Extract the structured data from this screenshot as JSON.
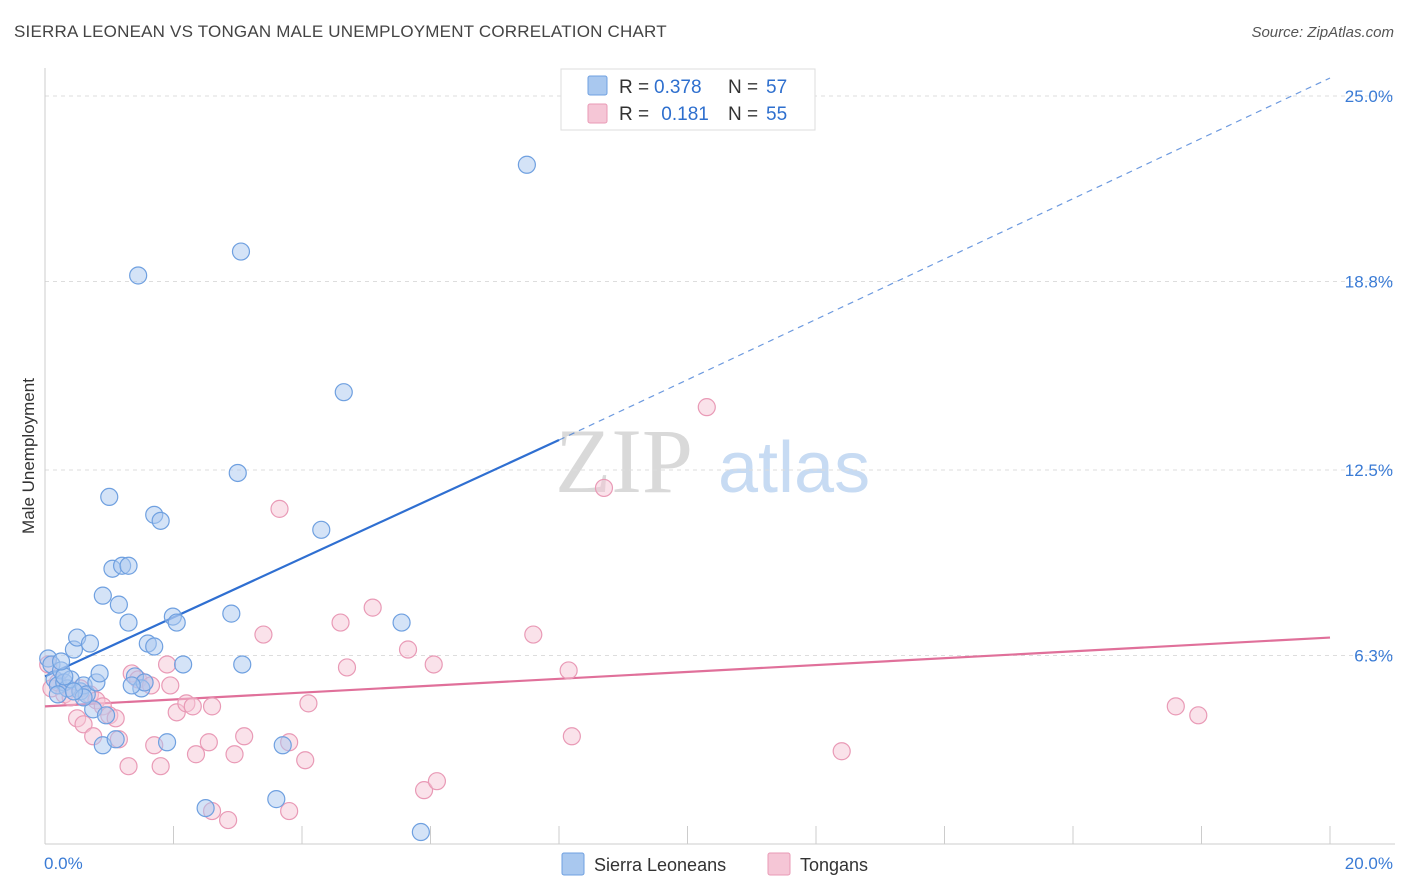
{
  "title": "SIERRA LEONEAN VS TONGAN MALE UNEMPLOYMENT CORRELATION CHART",
  "source": "Source: ZipAtlas.com",
  "watermark": {
    "zip": "ZIP",
    "atlas": "atlas"
  },
  "colors": {
    "blue": "#6fa0e0",
    "blue_fill": "#a9c8ef",
    "blue_line": "#2f6fd1",
    "pink": "#e99ab6",
    "pink_fill": "#f5c6d6",
    "pink_line": "#e0709a",
    "tick": "#3a7bd5"
  },
  "legend": {
    "rows": [
      {
        "r_label": "R =",
        "r_value": "0.378",
        "n_label": "N =",
        "n_value": "57"
      },
      {
        "r_label": "R =",
        "r_value": " 0.181",
        "n_label": "N =",
        "n_value": "55"
      }
    ]
  },
  "bottom_legend": [
    "Sierra Leoneans",
    "Tongans"
  ],
  "chart_data": {
    "type": "scatter",
    "title": "SIERRA LEONEAN VS TONGAN MALE UNEMPLOYMENT CORRELATION CHART",
    "xlabel": "",
    "ylabel": "Male Unemployment",
    "xlim": [
      0,
      20
    ],
    "ylim": [
      0,
      25.6
    ],
    "x_tick_labels": [
      "0.0%",
      "20.0%"
    ],
    "y_ticks": [
      6.3,
      12.5,
      18.8,
      25.0
    ],
    "y_tick_labels": [
      "6.3%",
      "12.5%",
      "18.8%",
      "25.0%"
    ],
    "grid": true,
    "legend_position": "top-center",
    "series": [
      {
        "name": "Sierra Leoneans",
        "trend": {
          "x0": 0,
          "y0": 5.6,
          "x1": 8.0,
          "y1": 13.5,
          "dashed_to_x": 20,
          "dashed_to_y": 25.6
        },
        "points": [
          [
            0.05,
            6.2
          ],
          [
            0.1,
            6.0
          ],
          [
            0.15,
            5.5
          ],
          [
            0.2,
            5.3
          ],
          [
            0.25,
            5.8
          ],
          [
            0.3,
            5.4
          ],
          [
            0.35,
            5.2
          ],
          [
            0.4,
            5.5
          ],
          [
            0.45,
            6.5
          ],
          [
            0.5,
            6.9
          ],
          [
            0.55,
            5.1
          ],
          [
            0.6,
            5.3
          ],
          [
            0.65,
            5.0
          ],
          [
            0.7,
            6.7
          ],
          [
            0.75,
            4.5
          ],
          [
            0.8,
            5.4
          ],
          [
            0.85,
            5.7
          ],
          [
            0.9,
            3.3
          ],
          [
            0.95,
            4.3
          ],
          [
            1.0,
            11.6
          ],
          [
            1.05,
            9.2
          ],
          [
            1.1,
            3.5
          ],
          [
            1.15,
            8.0
          ],
          [
            1.2,
            9.3
          ],
          [
            0.9,
            8.3
          ],
          [
            1.3,
            9.3
          ],
          [
            1.3,
            7.4
          ],
          [
            1.4,
            5.6
          ],
          [
            1.45,
            19.0
          ],
          [
            1.5,
            5.2
          ],
          [
            1.55,
            5.4
          ],
          [
            1.6,
            6.7
          ],
          [
            1.7,
            6.6
          ],
          [
            1.7,
            11.0
          ],
          [
            1.8,
            10.8
          ],
          [
            1.9,
            3.4
          ],
          [
            1.99,
            7.6
          ],
          [
            2.05,
            7.4
          ],
          [
            2.15,
            6.0
          ],
          [
            2.5,
            1.2
          ],
          [
            2.9,
            7.7
          ],
          [
            3.0,
            12.4
          ],
          [
            3.05,
            19.8
          ],
          [
            3.07,
            6.0
          ],
          [
            3.6,
            1.5
          ],
          [
            3.7,
            3.3
          ],
          [
            4.3,
            10.5
          ],
          [
            4.65,
            15.1
          ],
          [
            5.55,
            7.4
          ],
          [
            5.85,
            0.4
          ],
          [
            7.5,
            22.7
          ],
          [
            0.2,
            5.0
          ],
          [
            0.3,
            5.6
          ],
          [
            0.6,
            4.9
          ],
          [
            0.25,
            6.1
          ],
          [
            1.35,
            5.3
          ],
          [
            0.45,
            5.1
          ]
        ]
      },
      {
        "name": "Tongans",
        "trend": {
          "x0": 0,
          "y0": 4.6,
          "x1": 20,
          "y1": 6.9
        },
        "points": [
          [
            0.1,
            5.2
          ],
          [
            0.2,
            5.4
          ],
          [
            0.3,
            5.0
          ],
          [
            0.4,
            4.9
          ],
          [
            0.5,
            4.2
          ],
          [
            0.55,
            5.2
          ],
          [
            0.6,
            4.0
          ],
          [
            0.7,
            5.0
          ],
          [
            0.75,
            3.6
          ],
          [
            0.8,
            4.8
          ],
          [
            0.9,
            4.6
          ],
          [
            1.0,
            4.3
          ],
          [
            1.1,
            4.2
          ],
          [
            1.15,
            3.5
          ],
          [
            1.3,
            2.6
          ],
          [
            1.35,
            5.7
          ],
          [
            1.45,
            5.5
          ],
          [
            1.55,
            5.4
          ],
          [
            1.65,
            5.3
          ],
          [
            1.7,
            3.3
          ],
          [
            1.8,
            2.6
          ],
          [
            1.9,
            6.0
          ],
          [
            1.95,
            5.3
          ],
          [
            2.05,
            4.4
          ],
          [
            2.2,
            4.7
          ],
          [
            2.3,
            4.6
          ],
          [
            2.35,
            3.0
          ],
          [
            2.55,
            3.4
          ],
          [
            2.6,
            1.1
          ],
          [
            2.6,
            4.6
          ],
          [
            2.85,
            0.8
          ],
          [
            2.95,
            3.0
          ],
          [
            3.1,
            3.6
          ],
          [
            3.4,
            7.0
          ],
          [
            3.65,
            11.2
          ],
          [
            3.8,
            3.4
          ],
          [
            3.8,
            1.1
          ],
          [
            4.05,
            2.8
          ],
          [
            4.1,
            4.7
          ],
          [
            4.6,
            7.4
          ],
          [
            4.7,
            5.9
          ],
          [
            5.1,
            7.9
          ],
          [
            5.65,
            6.5
          ],
          [
            5.9,
            1.8
          ],
          [
            6.05,
            6.0
          ],
          [
            6.1,
            2.1
          ],
          [
            7.6,
            7.0
          ],
          [
            8.15,
            5.8
          ],
          [
            8.2,
            3.6
          ],
          [
            8.7,
            11.9
          ],
          [
            10.3,
            14.6
          ],
          [
            12.4,
            3.1
          ],
          [
            17.6,
            4.6
          ],
          [
            17.95,
            4.3
          ],
          [
            0.05,
            6.0
          ]
        ]
      }
    ]
  }
}
